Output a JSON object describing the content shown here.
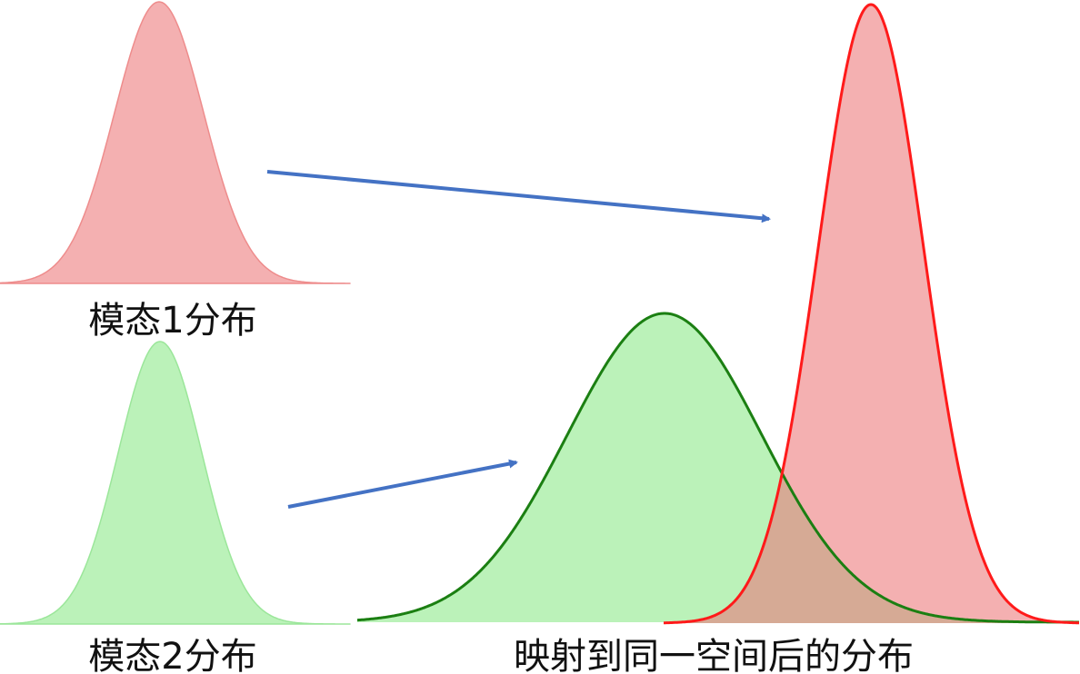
{
  "captions": {
    "modality1": "模态1分布",
    "modality2": "模态2分布",
    "mapped": "映射到同一空间后的分布"
  },
  "colors": {
    "red_fill": "#f4b0b1",
    "red_stroke_light": "#ee8c8c",
    "red_stroke": "#ff1a1a",
    "green_fill": "#bbf2b9",
    "green_stroke_light": "#9be69a",
    "green_stroke": "#1b7f12",
    "overlap_fill": "#d6aa95",
    "arrow": "#4472c4"
  }
}
